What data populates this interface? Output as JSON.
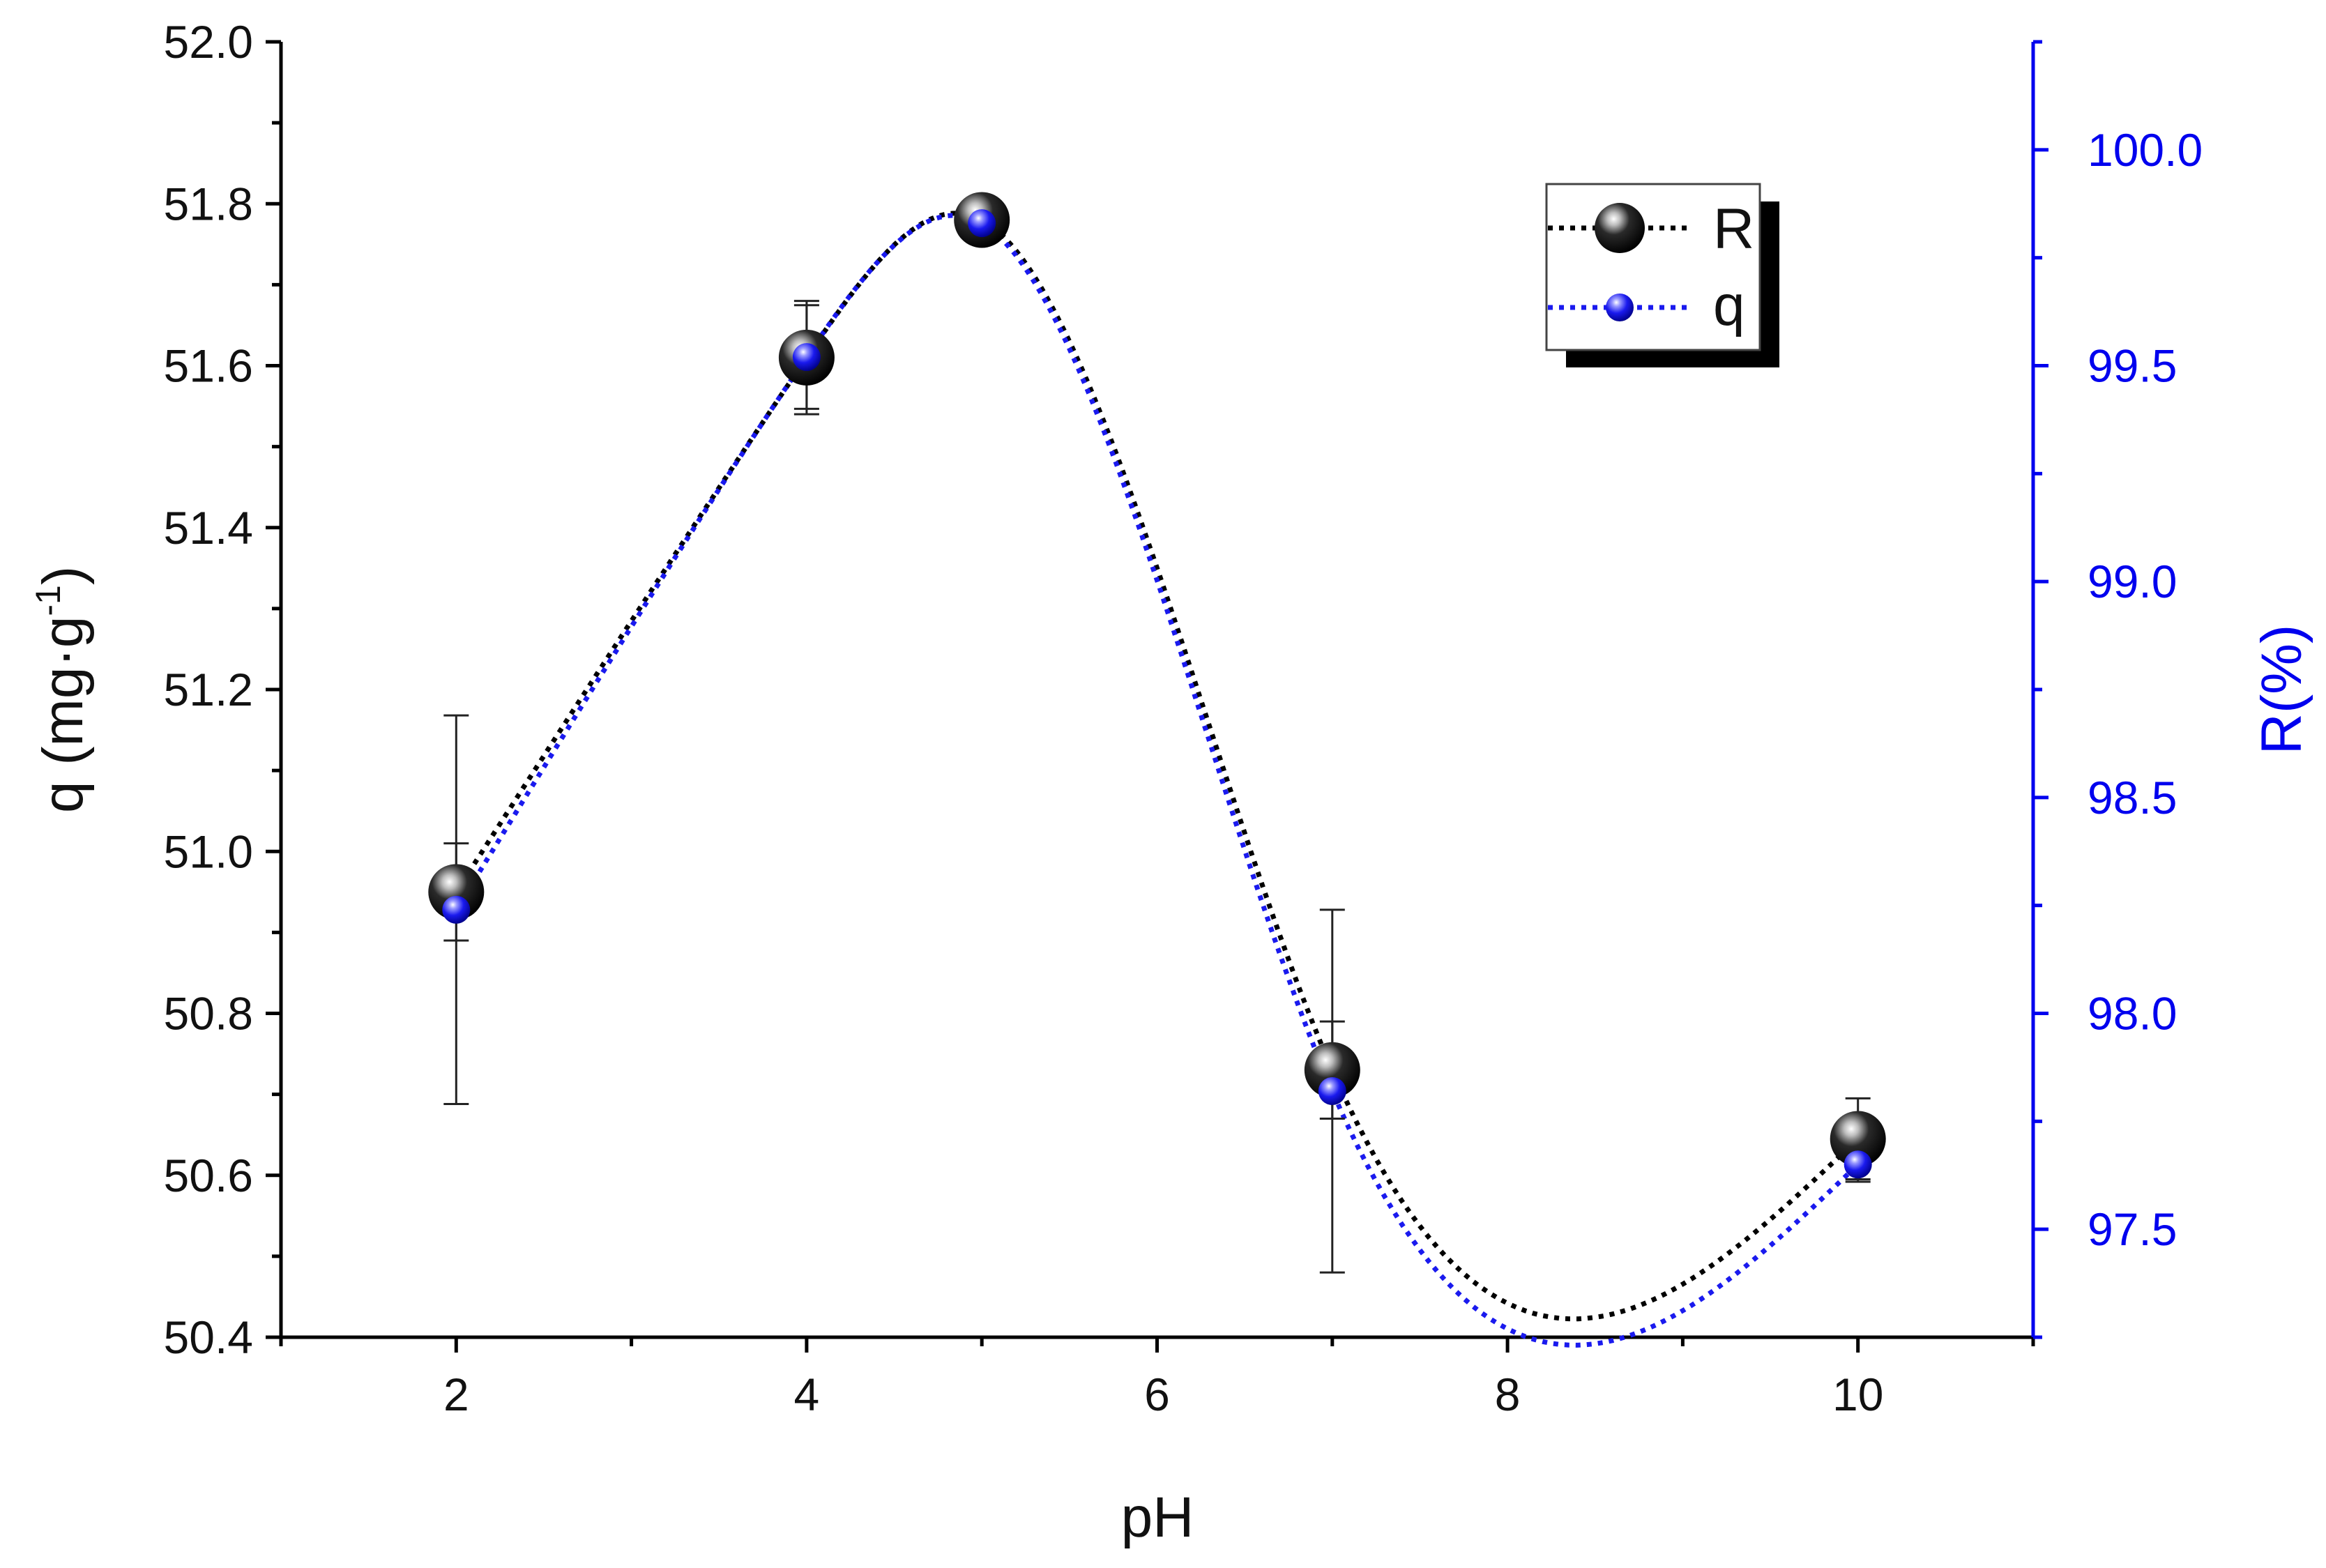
{
  "chart_data": {
    "type": "line",
    "x": [
      2,
      4,
      5,
      7,
      10
    ],
    "xlabel": "pH",
    "xlim": [
      1,
      11
    ],
    "xticks": [
      2,
      4,
      6,
      8,
      10
    ],
    "ylabel_left": "q (mg·g",
    "ylabel_left_sup": "-1",
    "ylabel_left_close": ")",
    "ylim_left": [
      50.4,
      52.0
    ],
    "yticks_left": [
      50.4,
      50.6,
      50.8,
      51.0,
      51.2,
      51.4,
      51.6,
      51.8,
      52.0
    ],
    "ylabel_right": "R(%)",
    "ylim_right": [
      97.25,
      100.25
    ],
    "yticks_right": [
      97.5,
      98.0,
      98.5,
      99.0,
      99.5,
      100.0
    ],
    "grid": false,
    "legend_position": "top-right",
    "series": [
      {
        "name": "R",
        "axis": "left",
        "color": "#000000",
        "marker": "large-black-sphere",
        "line_style": "dotted-spline",
        "values": [
          50.95,
          51.61,
          51.78,
          50.73,
          50.645
        ],
        "error": [
          0.06,
          0.07,
          0.0,
          0.06,
          0.05
        ]
      },
      {
        "name": "q",
        "axis": "right",
        "color": "#1a1aee",
        "marker": "small-blue-sphere",
        "line_style": "dotted-spline",
        "values": [
          98.24,
          99.52,
          99.83,
          97.82,
          97.65
        ],
        "error": [
          0.45,
          0.12,
          0.0,
          0.42,
          0.04
        ]
      }
    ],
    "colors": {
      "right_axis": "#0000ee",
      "left_axis": "#000000"
    }
  }
}
